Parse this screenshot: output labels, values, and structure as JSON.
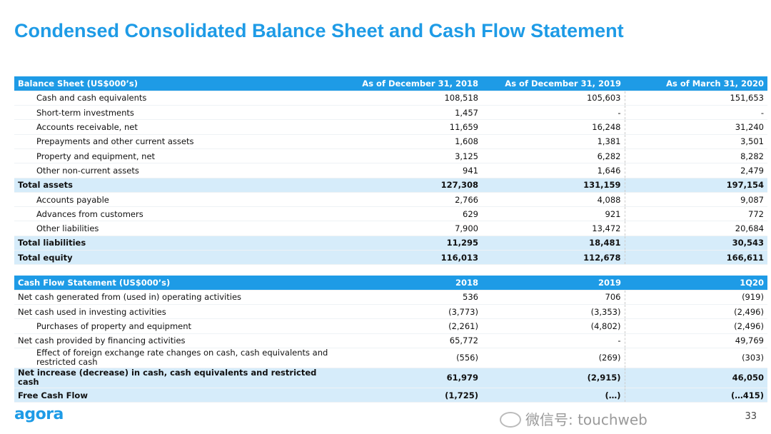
{
  "title": "Condensed Consolidated Balance Sheet and Cash Flow Statement",
  "balance_sheet": {
    "headers": [
      "Balance Sheet (US$000’s)",
      "As of December 31, 2018",
      "As of December 31, 2019",
      "As of March 31, 2020"
    ],
    "rows": [
      {
        "label": "Cash and cash equivalents",
        "values": [
          "108,518",
          "105,603",
          "151,653"
        ]
      },
      {
        "label": "Short-term investments",
        "values": [
          "1,457",
          "-",
          "-"
        ]
      },
      {
        "label": "Accounts receivable, net",
        "values": [
          "11,659",
          "16,248",
          "31,240"
        ]
      },
      {
        "label": "Prepayments and other current assets",
        "values": [
          "1,608",
          "1,381",
          "3,501"
        ]
      },
      {
        "label": "Property and equipment, net",
        "values": [
          "3,125",
          "6,282",
          "8,282"
        ]
      },
      {
        "label": "Other non-current assets",
        "values": [
          "941",
          "1,646",
          "2,479"
        ]
      },
      {
        "label": "Total assets",
        "values": [
          "127,308",
          "131,159",
          "197,154"
        ]
      },
      {
        "label": "Accounts payable",
        "values": [
          "2,766",
          "4,088",
          "9,087"
        ]
      },
      {
        "label": "Advances from customers",
        "values": [
          "629",
          "921",
          "772"
        ]
      },
      {
        "label": "Other liabilities",
        "values": [
          "7,900",
          "13,472",
          "20,684"
        ]
      },
      {
        "label": "Total liabilities",
        "values": [
          "11,295",
          "18,481",
          "30,543"
        ]
      },
      {
        "label": "Total equity",
        "values": [
          "116,013",
          "112,678",
          "166,611"
        ]
      }
    ]
  },
  "cash_flow": {
    "headers": [
      "Cash Flow Statement (US$000’s)",
      "2018",
      "2019",
      "1Q20"
    ],
    "rows": [
      {
        "label": "Net cash generated from (used in) operating activities",
        "values": [
          "536",
          "706",
          "(919)"
        ]
      },
      {
        "label": "Net cash used in investing activities",
        "values": [
          "(3,773)",
          "(3,353)",
          "(2,496)"
        ]
      },
      {
        "label": "Purchases of property and equipment",
        "values": [
          "(2,261)",
          "(4,802)",
          "(2,496)"
        ]
      },
      {
        "label": "Net cash provided by financing activities",
        "values": [
          "65,772",
          "-",
          "49,769"
        ]
      },
      {
        "label": "Effect of foreign exchange rate changes on cash, cash equivalents and restricted cash",
        "values": [
          "(556)",
          "(269)",
          "(303)"
        ]
      },
      {
        "label": "Net increase (decrease) in cash, cash equivalents and restricted cash",
        "values": [
          "61,979",
          "(2,915)",
          "46,050"
        ]
      },
      {
        "label": "Free Cash Flow",
        "values": [
          "(1,725)",
          "(…)",
          "(…415)"
        ]
      }
    ]
  },
  "logo": "agora",
  "page_number": "33",
  "watermark": "微信号: touchweb"
}
